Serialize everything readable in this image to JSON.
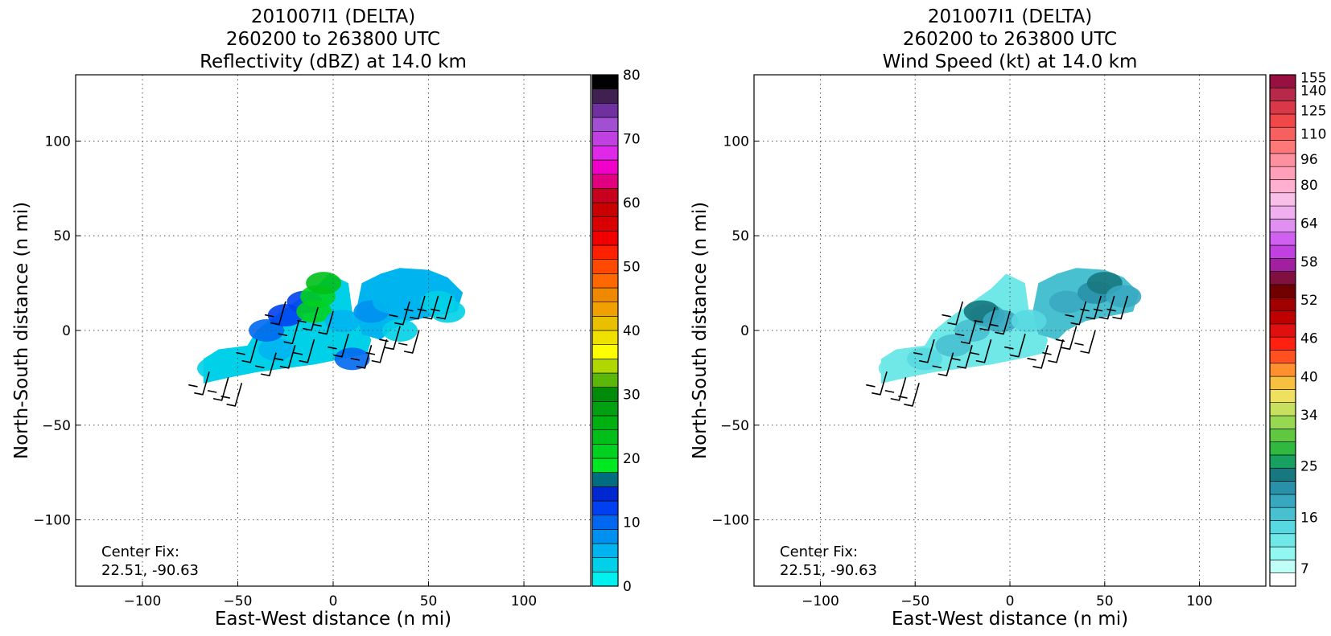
{
  "chart_data": [
    {
      "type": "heatmap",
      "panel": "left",
      "title_lines": [
        "201007I1 (DELTA)",
        "260200 to 263800 UTC",
        "Reflectivity (dBZ) at 14.0 km"
      ],
      "xlabel": "East-West distance (n mi)",
      "ylabel": "North-South distance (n mi)",
      "xlim": [
        -135,
        135
      ],
      "ylim": [
        -135,
        135
      ],
      "xticks": [
        -100,
        -50,
        0,
        50,
        100
      ],
      "yticks": [
        -100,
        -50,
        0,
        50,
        100
      ],
      "grid": true,
      "annotation": [
        "Center Fix:",
        "22.51, -90.63"
      ],
      "colorbar": {
        "min": 0,
        "max": 80,
        "tick_values": [
          0,
          10,
          20,
          30,
          40,
          50,
          60,
          70,
          80
        ],
        "colors": [
          "#00f0f0",
          "#00d0e8",
          "#00b4f0",
          "#0090f0",
          "#0068f0",
          "#0040f0",
          "#0028d0",
          "#006e80",
          "#00e820",
          "#00d020",
          "#00c018",
          "#00b010",
          "#00a010",
          "#008c08",
          "#5cb808",
          "#b0d800",
          "#ffff00",
          "#f0e000",
          "#e8c000",
          "#f0a000",
          "#f08800",
          "#ff6800",
          "#ff4800",
          "#ff2000",
          "#f00000",
          "#d80000",
          "#c80000",
          "#c80020",
          "#e00080",
          "#f000c8",
          "#e028e8",
          "#c040e0",
          "#a050d0",
          "#7030a0",
          "#402050",
          "#000000"
        ]
      },
      "field": {
        "cells": [
          {
            "x": -62,
            "y": -20,
            "value": 3
          },
          {
            "x": -52,
            "y": -18,
            "value": 3
          },
          {
            "x": -42,
            "y": -14,
            "value": 4
          },
          {
            "x": -30,
            "y": -10,
            "value": 5
          },
          {
            "x": -35,
            "y": 0,
            "value": 10
          },
          {
            "x": -25,
            "y": 8,
            "value": 12
          },
          {
            "x": -15,
            "y": 15,
            "value": 13
          },
          {
            "x": -10,
            "y": 10,
            "value": 20
          },
          {
            "x": -8,
            "y": 18,
            "value": 22
          },
          {
            "x": -5,
            "y": 25,
            "value": 24
          },
          {
            "x": 5,
            "y": 5,
            "value": 6
          },
          {
            "x": 20,
            "y": 10,
            "value": 8
          },
          {
            "x": 30,
            "y": 15,
            "value": 6
          },
          {
            "x": 45,
            "y": 20,
            "value": 5
          },
          {
            "x": 55,
            "y": 15,
            "value": 4
          },
          {
            "x": 60,
            "y": 10,
            "value": 3
          },
          {
            "x": 35,
            "y": 0,
            "value": 3
          },
          {
            "x": 10,
            "y": -15,
            "value": 9
          }
        ]
      }
    },
    {
      "type": "heatmap",
      "panel": "right",
      "title_lines": [
        "201007I1 (DELTA)",
        "260200 to 263800 UTC",
        "Wind Speed (kt) at 14.0 km"
      ],
      "xlabel": "East-West distance (n mi)",
      "ylabel": "North-South distance (n mi)",
      "xlim": [
        -135,
        135
      ],
      "ylim": [
        -135,
        135
      ],
      "xticks": [
        -100,
        -50,
        0,
        50,
        100
      ],
      "yticks": [
        -100,
        -50,
        0,
        50,
        100
      ],
      "grid": true,
      "annotation": [
        "Center Fix:",
        "22.51, -90.63"
      ],
      "colorbar": {
        "tick_values": [
          7,
          16,
          25,
          34,
          40,
          46,
          52,
          58,
          64,
          80,
          96,
          110,
          125,
          140,
          155
        ],
        "colors": [
          "#ffffff",
          "#c0fff8",
          "#90f8f0",
          "#70e8e8",
          "#58d8e0",
          "#48c0d0",
          "#38a8c0",
          "#2890a8",
          "#187880",
          "#18a060",
          "#30b840",
          "#60c840",
          "#98d850",
          "#c8e060",
          "#f0e060",
          "#f8c040",
          "#ff9030",
          "#ff5020",
          "#ff2010",
          "#e01010",
          "#c00000",
          "#a00000",
          "#700000",
          "#801040",
          "#a020a0",
          "#c040e0",
          "#d060f0",
          "#e090f0",
          "#f0b0f0",
          "#f8c0e8",
          "#ffb0d0",
          "#ffa0b8",
          "#ff90a0",
          "#ff7878",
          "#f86060",
          "#f04848",
          "#d83848",
          "#b82848",
          "#981040"
        ]
      },
      "field": {
        "cells": [
          {
            "x": -60,
            "y": -20,
            "value": 16
          },
          {
            "x": -45,
            "y": -15,
            "value": 18
          },
          {
            "x": -30,
            "y": -8,
            "value": 22
          },
          {
            "x": -20,
            "y": 0,
            "value": 24
          },
          {
            "x": -12,
            "y": 8,
            "value": 28
          },
          {
            "x": -15,
            "y": 10,
            "value": 34
          },
          {
            "x": -5,
            "y": 5,
            "value": 26
          },
          {
            "x": 10,
            "y": 5,
            "value": 18
          },
          {
            "x": 30,
            "y": 15,
            "value": 28
          },
          {
            "x": 45,
            "y": 20,
            "value": 30
          },
          {
            "x": 50,
            "y": 25,
            "value": 34
          },
          {
            "x": 60,
            "y": 18,
            "value": 26
          }
        ]
      }
    }
  ]
}
